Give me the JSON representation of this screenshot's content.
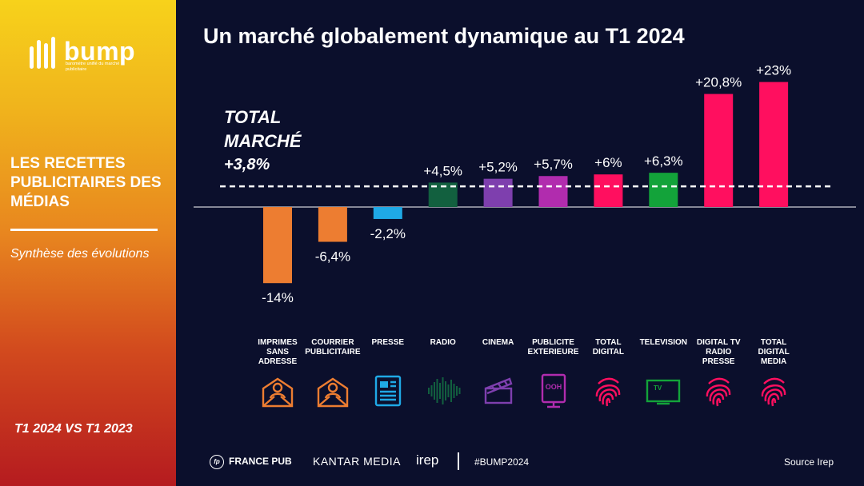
{
  "sidebar": {
    "logo_word": "bump",
    "logo_tagline": "baromètre unifié du marché publicitaire",
    "heading": "LES RECETTES PUBLICITAIRES DES MÉDIAS",
    "subheading": "Synthèse des évolutions",
    "period": "T1 2024 VS T1 2023"
  },
  "title": "Un marché globalement dynamique au T1 2024",
  "total": {
    "label": "TOTAL\nMARCHÉ",
    "value": "+3,8%"
  },
  "footer": {
    "francepub": "FRANCE PUB",
    "kantar": "KANTAR MEDIA",
    "irep": "irep",
    "hashtag": "#BUMP2024",
    "source": "Source Irep"
  },
  "colors": {
    "background": "#0b0f2c",
    "orange": "#ed7d31",
    "blue": "#1fa9e6",
    "dark_green": "#12603f",
    "purple": "#7e3fae",
    "magenta": "#b12cae",
    "pink": "#ff0f5f",
    "green": "#13a33a"
  },
  "chart_data": {
    "type": "bar",
    "title": "Un marché globalement dynamique au T1 2024",
    "categories": [
      "IMPRIMES SANS ADRESSE",
      "COURRIER PUBLICITAIRE",
      "PRESSE",
      "RADIO",
      "CINEMA",
      "PUBLICITE EXTERIEURE",
      "TOTAL DIGITAL",
      "TELEVISION",
      "DIGITAL TV RADIO PRESSE",
      "TOTAL DIGITAL MEDIA"
    ],
    "values": [
      -14,
      -6.4,
      -2.2,
      4.5,
      5.2,
      5.7,
      6,
      6.3,
      20.8,
      23
    ],
    "value_labels": [
      "-14%",
      "-6,4%",
      "-2,2%",
      "+4,5%",
      "+5,2%",
      "+5,7%",
      "+6%",
      "+6,3%",
      "+20,8%",
      "+23%"
    ],
    "bar_colors": [
      "#ed7d31",
      "#ed7d31",
      "#1fa9e6",
      "#12603f",
      "#7e3fae",
      "#b12cae",
      "#ff0f5f",
      "#13a33a",
      "#ff0f5f",
      "#ff0f5f"
    ],
    "icons": [
      "letter-icon",
      "letter-icon",
      "newspaper-icon",
      "soundwave-icon",
      "clapperboard-icon",
      "billboard-icon",
      "fingerprint-icon",
      "tv-icon",
      "fingerprint-icon",
      "fingerprint-icon"
    ],
    "reference_line": {
      "value": 3.8,
      "style": "dashed"
    },
    "ylim": [
      -14,
      23
    ]
  }
}
